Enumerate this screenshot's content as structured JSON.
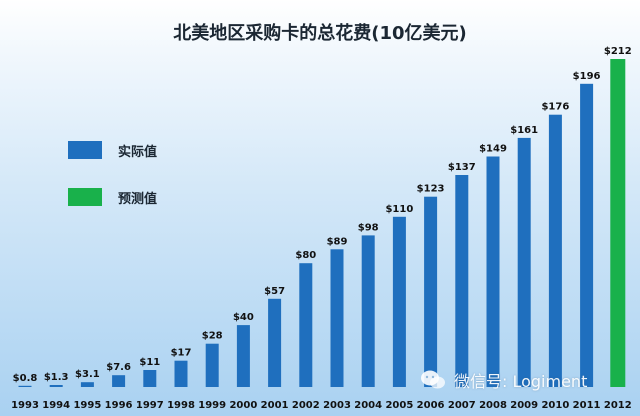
{
  "chart_data": {
    "type": "bar",
    "title": "北美地区采购卡的总花费(10亿美元)",
    "xlabel": "",
    "ylabel": "",
    "ylim": [
      0,
      212
    ],
    "categories": [
      "1993",
      "1994",
      "1995",
      "1996",
      "1997",
      "1998",
      "1999",
      "2000",
      "2001",
      "2002",
      "2003",
      "2004",
      "2005",
      "2006",
      "2007",
      "2008",
      "2009",
      "2010",
      "2011",
      "2012"
    ],
    "values": [
      0.8,
      1.3,
      3.1,
      7.6,
      11,
      17,
      28,
      40,
      57,
      80,
      89,
      98,
      110,
      123,
      137,
      149,
      161,
      176,
      196,
      212
    ],
    "value_labels": [
      "$0.8",
      "$1.3",
      "$3.1",
      "$7.6",
      "$11",
      "$17",
      "$28",
      "$40",
      "$57",
      "$80",
      "$89",
      "$98",
      "$110",
      "$123",
      "$137",
      "$149",
      "$161",
      "$176",
      "$196",
      "$212"
    ],
    "series_type": [
      "actual",
      "actual",
      "actual",
      "actual",
      "actual",
      "actual",
      "actual",
      "actual",
      "actual",
      "actual",
      "actual",
      "actual",
      "actual",
      "actual",
      "actual",
      "actual",
      "actual",
      "actual",
      "actual",
      "forecast"
    ],
    "series": [
      {
        "key": "actual",
        "name": "实际值",
        "color": "#1f6fbe"
      },
      {
        "key": "forecast",
        "name": "预测值",
        "color": "#19b14b"
      }
    ],
    "grid": false,
    "legend_position": "left"
  },
  "watermark": {
    "icon": "wechat-icon",
    "text": "微信号: Logiment"
  }
}
